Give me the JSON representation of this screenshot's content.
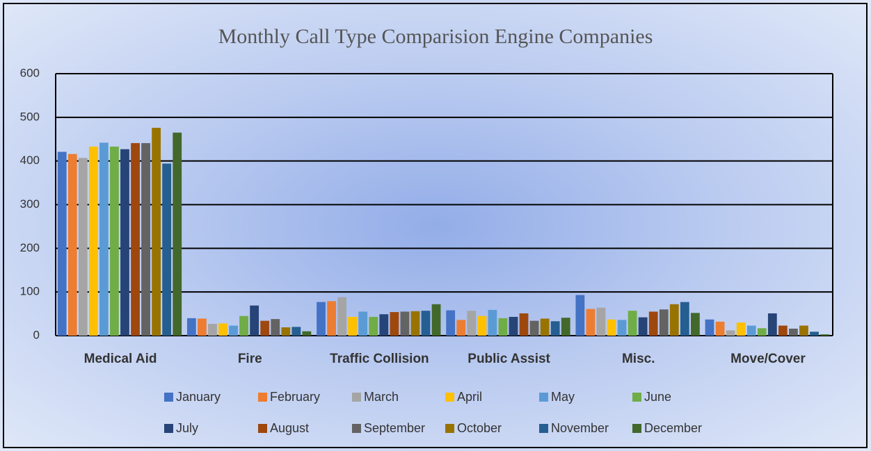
{
  "chart_data": {
    "type": "bar",
    "title": "Monthly Call Type Comparision Engine Companies",
    "categories": [
      "Medical Aid",
      "Fire",
      "Traffic Collision",
      "Public Assist",
      "Misc.",
      "Move/Cover"
    ],
    "series": [
      {
        "name": "January",
        "color": "#4472c4",
        "values": [
          421,
          40,
          77,
          58,
          93,
          37
        ]
      },
      {
        "name": "February",
        "color": "#ed7d31",
        "values": [
          416,
          39,
          79,
          36,
          61,
          32
        ]
      },
      {
        "name": "March",
        "color": "#a5a5a5",
        "values": [
          407,
          27,
          88,
          57,
          64,
          12
        ]
      },
      {
        "name": "April",
        "color": "#ffc000",
        "values": [
          433,
          28,
          43,
          45,
          37,
          30
        ]
      },
      {
        "name": "May",
        "color": "#5b9bd5",
        "values": [
          442,
          23,
          55,
          59,
          36,
          23
        ]
      },
      {
        "name": "June",
        "color": "#70ad47",
        "values": [
          433,
          45,
          43,
          40,
          57,
          17
        ]
      },
      {
        "name": "July",
        "color": "#264478",
        "values": [
          427,
          69,
          49,
          43,
          42,
          51
        ]
      },
      {
        "name": "August",
        "color": "#9e480e",
        "values": [
          441,
          34,
          54,
          51,
          55,
          23
        ]
      },
      {
        "name": "September",
        "color": "#636363",
        "values": [
          441,
          38,
          55,
          34,
          60,
          16
        ]
      },
      {
        "name": "October",
        "color": "#997300",
        "values": [
          476,
          19,
          56,
          39,
          72,
          23
        ]
      },
      {
        "name": "November",
        "color": "#255e91",
        "values": [
          394,
          20,
          57,
          33,
          77,
          9
        ]
      },
      {
        "name": "December",
        "color": "#43682b",
        "values": [
          465,
          10,
          72,
          41,
          52,
          3
        ]
      }
    ],
    "ylim": [
      0,
      600
    ],
    "yticks": [
      0,
      100,
      200,
      300,
      400,
      500,
      600
    ],
    "grid": true,
    "legend": "bottom"
  }
}
